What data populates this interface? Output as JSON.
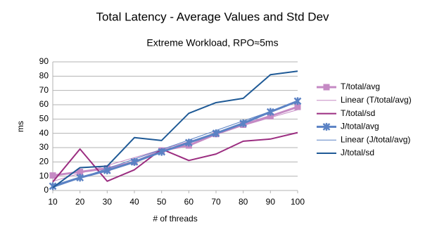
{
  "chart_data": {
    "type": "line",
    "title": "Total Latency - Average Values and Std Dev",
    "subtitle": "Extreme Workload, RPO≈5ms",
    "xlabel": "# of threads",
    "ylabel": "ms",
    "x": [
      10,
      20,
      30,
      40,
      50,
      60,
      70,
      80,
      90,
      100
    ],
    "xlim": [
      10,
      100
    ],
    "xticks": [
      10,
      20,
      30,
      40,
      50,
      60,
      70,
      80,
      90,
      100
    ],
    "ylim": [
      0,
      90
    ],
    "yticks": [
      0,
      10,
      20,
      30,
      40,
      50,
      60,
      70,
      80,
      90
    ],
    "grid": true,
    "legend": "right",
    "series": [
      {
        "name": "T/total/avg",
        "color": "#c58ac4",
        "width": 3,
        "marker": "square",
        "values": [
          10.5,
          13,
          15.5,
          20,
          28,
          31.5,
          39.5,
          46,
          52,
          58.5
        ]
      },
      {
        "name": "Linear (T/total/avg)",
        "color": "#c58ac4",
        "width": 1,
        "values": [
          6.4,
          12,
          17.5,
          23,
          28.7,
          34.2,
          39.8,
          45.4,
          51,
          56.5
        ]
      },
      {
        "name": "T/total/sd",
        "color": "#9b2d80",
        "width": 2,
        "values": [
          6,
          29,
          6.5,
          14.5,
          29,
          21,
          25.5,
          34.5,
          36,
          40.5
        ]
      },
      {
        "name": "J/total/avg",
        "color": "#5b82c4",
        "width": 3,
        "marker": "star",
        "values": [
          3,
          9,
          14,
          20,
          27,
          33.5,
          40,
          47,
          55,
          62.5
        ]
      },
      {
        "name": "Linear (J/total/avg)",
        "color": "#5b82c4",
        "width": 1,
        "values": [
          2,
          8.7,
          15.3,
          22,
          28.7,
          35.3,
          42,
          48.7,
          55.3,
          62
        ]
      },
      {
        "name": "J/total/sd",
        "color": "#1f5a96",
        "width": 2,
        "values": [
          2,
          16,
          17,
          37,
          35,
          54,
          61.5,
          64.5,
          81,
          83.5
        ]
      }
    ]
  }
}
